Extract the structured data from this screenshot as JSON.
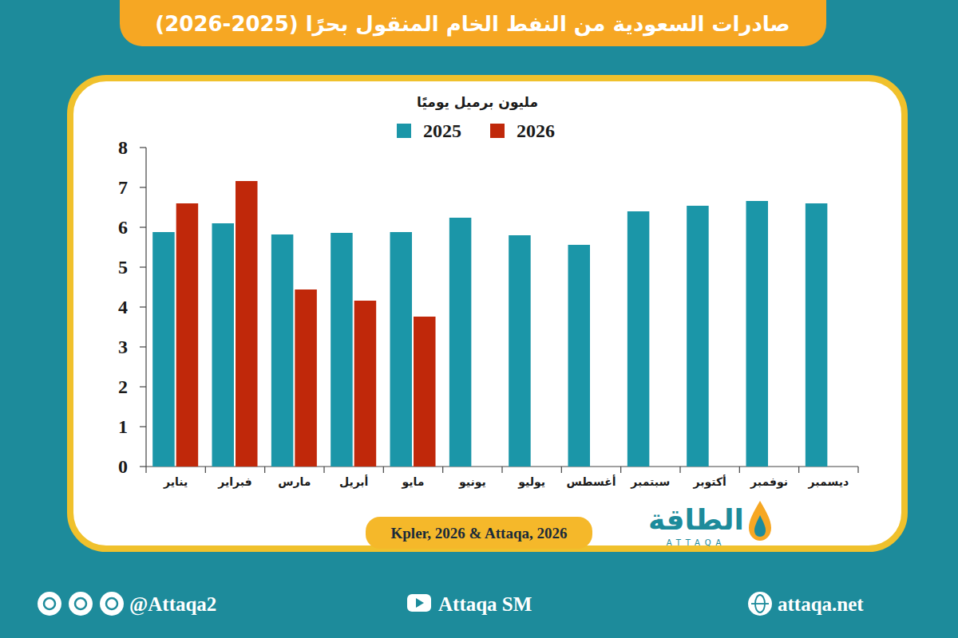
{
  "chart_data": {
    "type": "bar",
    "title": "صادرات السعودية من النفط الخام المنقول بحرًا (2025-2026)",
    "y_label": "مليون برميل يوميًا",
    "source": "Kpler, 2026 & Attaqa, 2026",
    "categories": [
      "يناير",
      "فبراير",
      "مارس",
      "أبريل",
      "مايو",
      "يونيو",
      "يوليو",
      "أغسطس",
      "سبتمبر",
      "أكتوبر",
      "نوفمبر",
      "ديسمبر"
    ],
    "series": [
      {
        "name": "2025",
        "color": "#1b96a8",
        "values": [
          5.88,
          6.1,
          5.82,
          5.86,
          5.88,
          6.24,
          5.8,
          5.56,
          6.4,
          6.54,
          6.66,
          6.6
        ]
      },
      {
        "name": "2026",
        "color": "#c0280a",
        "values": [
          6.6,
          7.16,
          4.44,
          4.16,
          3.76,
          null,
          null,
          null,
          null,
          null,
          null,
          null
        ]
      }
    ],
    "ylim": [
      0,
      8
    ],
    "yticks": [
      0,
      1,
      2,
      3,
      4,
      5,
      6,
      7,
      8
    ],
    "grid": false,
    "legend": "top"
  },
  "footer": {
    "logo": "الطاقة",
    "logo_latin": "ATTAQA",
    "social": "@Attaqa2",
    "youtube": "Attaqa SM",
    "website": "attaqa.net"
  }
}
